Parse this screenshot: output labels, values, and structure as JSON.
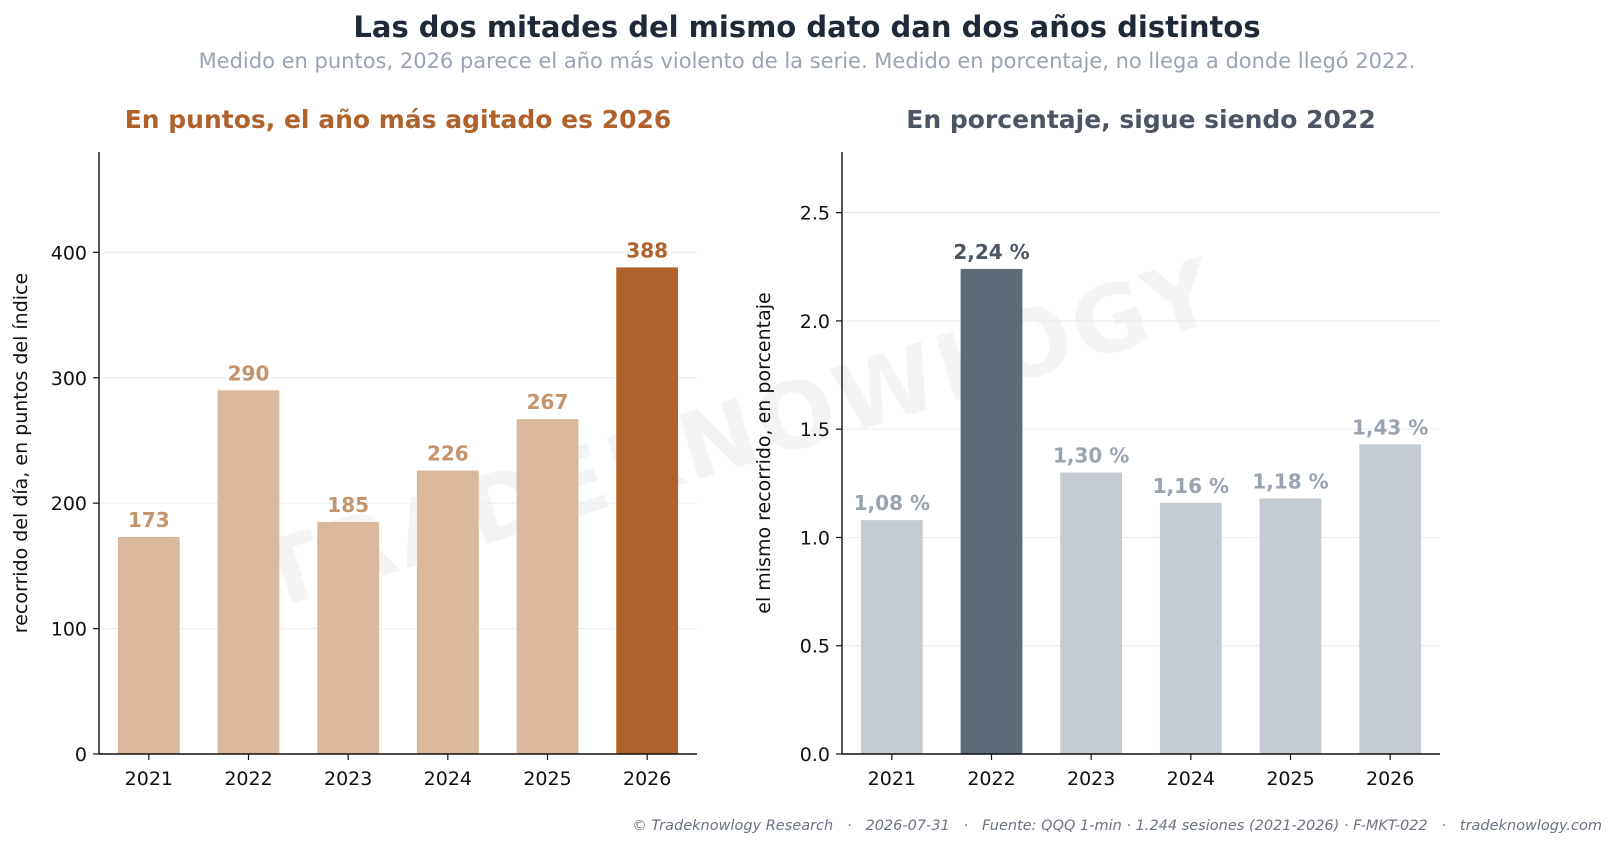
{
  "title": "Las dos mitades del mismo dato dan dos años distintos",
  "subtitle": "Medido en puntos, 2026 parece el año más violento de la serie. Medido en porcentaje, no llega a donde llegó 2022.",
  "watermark": "TRADEKNOWLOGY",
  "footer": "© Tradeknowlogy Research   ·   2026-07-31   ·   Fuente: QQQ 1-min · 1.244 sesiones (2021-2026) · F-MKT-022   ·   tradeknowlogy.com",
  "chart_data": [
    {
      "type": "bar",
      "title": "En puntos, el año más agitado es 2026",
      "title_color": "#b0622c",
      "ylabel": "recorrido del día, en puntos del índice",
      "categories": [
        "2021",
        "2022",
        "2023",
        "2024",
        "2025",
        "2026"
      ],
      "values": [
        173,
        290,
        185,
        226,
        267,
        388
      ],
      "labels": [
        "173",
        "290",
        "185",
        "226",
        "267",
        "388"
      ],
      "ylim": [
        0,
        480
      ],
      "yticks": [
        0,
        100,
        200,
        300,
        400
      ],
      "ytick_labels": [
        "0",
        "100",
        "200",
        "300",
        "400"
      ],
      "highlight_index": 5,
      "colors": {
        "bar": "#d9b89b",
        "highlight": "#b0622c",
        "label": "#c4946d",
        "highlight_label": "#b0622c"
      },
      "grid": true
    },
    {
      "type": "bar",
      "title": "En porcentaje, sigue siendo 2022",
      "title_color": "#4b5563",
      "ylabel": "el mismo recorrido, en porcentaje",
      "categories": [
        "2021",
        "2022",
        "2023",
        "2024",
        "2025",
        "2026"
      ],
      "values": [
        1.08,
        2.24,
        1.3,
        1.16,
        1.18,
        1.43
      ],
      "labels": [
        "1,08 %",
        "2,24 %",
        "1,30 %",
        "1,16 %",
        "1,18 %",
        "1,43 %"
      ],
      "ylim": [
        0,
        2.78
      ],
      "yticks": [
        0,
        0.5,
        1.0,
        1.5,
        2.0,
        2.5
      ],
      "ytick_labels": [
        "0.0",
        "0.5",
        "1.0",
        "1.5",
        "2.0",
        "2.5"
      ],
      "highlight_index": 1,
      "colors": {
        "bar": "#c5cbd3",
        "highlight": "#5d6b79",
        "label": "#9aa3b0",
        "highlight_label": "#4b5563"
      },
      "grid": true
    }
  ]
}
